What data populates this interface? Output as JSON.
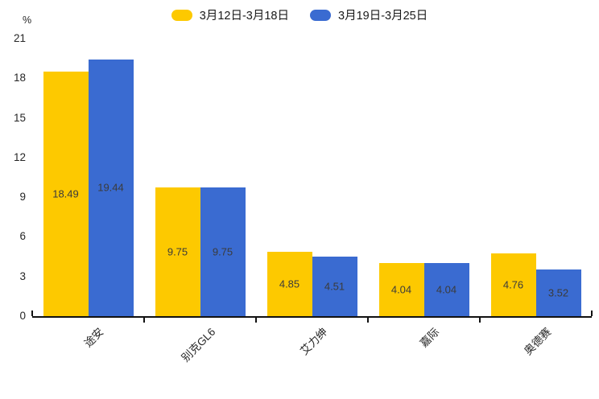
{
  "chart_data": {
    "type": "bar",
    "title": "",
    "unit_label": "%",
    "categories": [
      "途安",
      "别克GL6",
      "艾力绅",
      "嘉际",
      "奥德赛"
    ],
    "series": [
      {
        "name": "3月12日-3月18日",
        "color": "#FDC900",
        "values": [
          18.49,
          9.75,
          4.85,
          4.04,
          4.76
        ]
      },
      {
        "name": "3月19日-3月25日",
        "color": "#3A6BD1",
        "values": [
          19.44,
          9.75,
          4.51,
          4.04,
          3.52
        ]
      }
    ],
    "ylim": [
      0,
      21
    ],
    "yticks": [
      0,
      3,
      6,
      9,
      12,
      15,
      18,
      21
    ],
    "grid": false,
    "legend_position": "top-center",
    "value_labels": true,
    "value_label_decimals": 2,
    "axis_color": "#111111",
    "text_color": "#262626"
  }
}
